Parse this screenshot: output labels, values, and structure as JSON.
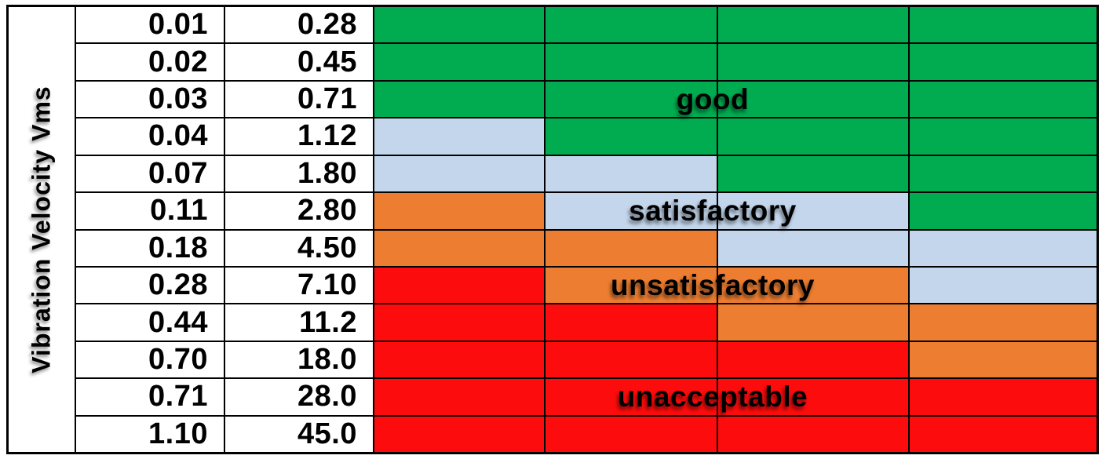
{
  "table": {
    "y_axis_label": "Vibration Velocity Vms",
    "rows": [
      {
        "v1": "0.01",
        "v2": "0.28",
        "zones": [
          "good",
          "good",
          "good",
          "good"
        ]
      },
      {
        "v1": "0.02",
        "v2": "0.45",
        "zones": [
          "good",
          "good",
          "good",
          "good"
        ]
      },
      {
        "v1": "0.03",
        "v2": "0.71",
        "zones": [
          "good",
          "good",
          "good",
          "good"
        ]
      },
      {
        "v1": "0.04",
        "v2": "1.12",
        "zones": [
          "sat",
          "good",
          "good",
          "good"
        ]
      },
      {
        "v1": "0.07",
        "v2": "1.80",
        "zones": [
          "sat",
          "sat",
          "good",
          "good"
        ]
      },
      {
        "v1": "0.11",
        "v2": "2.80",
        "zones": [
          "unsat",
          "sat",
          "sat",
          "good"
        ]
      },
      {
        "v1": "0.18",
        "v2": "4.50",
        "zones": [
          "unsat",
          "unsat",
          "sat",
          "sat"
        ]
      },
      {
        "v1": "0.28",
        "v2": "7.10",
        "zones": [
          "unacc",
          "unsat",
          "unsat",
          "sat"
        ]
      },
      {
        "v1": "0.44",
        "v2": "11.2",
        "zones": [
          "unacc",
          "unacc",
          "unsat",
          "unsat"
        ]
      },
      {
        "v1": "0.70",
        "v2": "18.0",
        "zones": [
          "unacc",
          "unacc",
          "unacc",
          "unsat"
        ]
      },
      {
        "v1": "0.71",
        "v2": "28.0",
        "zones": [
          "unacc",
          "unacc",
          "unacc",
          "unacc"
        ]
      },
      {
        "v1": "1.10",
        "v2": "45.0",
        "zones": [
          "unacc",
          "unacc",
          "unacc",
          "unacc"
        ]
      }
    ],
    "zone_labels": [
      {
        "text": "good",
        "row": 3
      },
      {
        "text": "satisfactory",
        "row": 6
      },
      {
        "text": "unsatisfactory",
        "row": 8
      },
      {
        "text": "unacceptable",
        "row": 11
      }
    ],
    "zone_colors": {
      "good": "#00AC4F",
      "sat": "#C3D6EC",
      "unsat": "#ED7D31",
      "unacc": "#FC0C0C"
    },
    "grid_line_color": "#000000"
  },
  "chart_data": {
    "type": "heatmap",
    "title": "",
    "ylabel": "Vibration Velocity Vms",
    "velocity_scale_1": [
      0.01,
      0.02,
      0.03,
      0.04,
      0.07,
      0.11,
      0.18,
      0.28,
      0.44,
      0.7,
      0.71,
      1.1
    ],
    "velocity_scale_2": [
      0.28,
      0.45,
      0.71,
      1.12,
      1.8,
      2.8,
      4.5,
      7.1,
      11.2,
      18.0,
      28.0,
      45.0
    ],
    "severity_columns": 4,
    "zone_matrix": [
      [
        "good",
        "good",
        "good",
        "good"
      ],
      [
        "good",
        "good",
        "good",
        "good"
      ],
      [
        "good",
        "good",
        "good",
        "good"
      ],
      [
        "satisfactory",
        "good",
        "good",
        "good"
      ],
      [
        "satisfactory",
        "satisfactory",
        "good",
        "good"
      ],
      [
        "unsatisfactory",
        "satisfactory",
        "satisfactory",
        "good"
      ],
      [
        "unsatisfactory",
        "unsatisfactory",
        "satisfactory",
        "satisfactory"
      ],
      [
        "unacceptable",
        "unsatisfactory",
        "unsatisfactory",
        "satisfactory"
      ],
      [
        "unacceptable",
        "unacceptable",
        "unsatisfactory",
        "unsatisfactory"
      ],
      [
        "unacceptable",
        "unacceptable",
        "unacceptable",
        "unsatisfactory"
      ],
      [
        "unacceptable",
        "unacceptable",
        "unacceptable",
        "unacceptable"
      ],
      [
        "unacceptable",
        "unacceptable",
        "unacceptable",
        "unacceptable"
      ]
    ],
    "legend": [
      "good",
      "satisfactory",
      "unsatisfactory",
      "unacceptable"
    ],
    "legend_position": "overlaid on zone rows 3, 6, 8, 11",
    "zone_colors": {
      "good": "#00AC4F",
      "satisfactory": "#C3D6EC",
      "unsatisfactory": "#ED7D31",
      "unacceptable": "#FC0C0C"
    },
    "grid": true
  }
}
